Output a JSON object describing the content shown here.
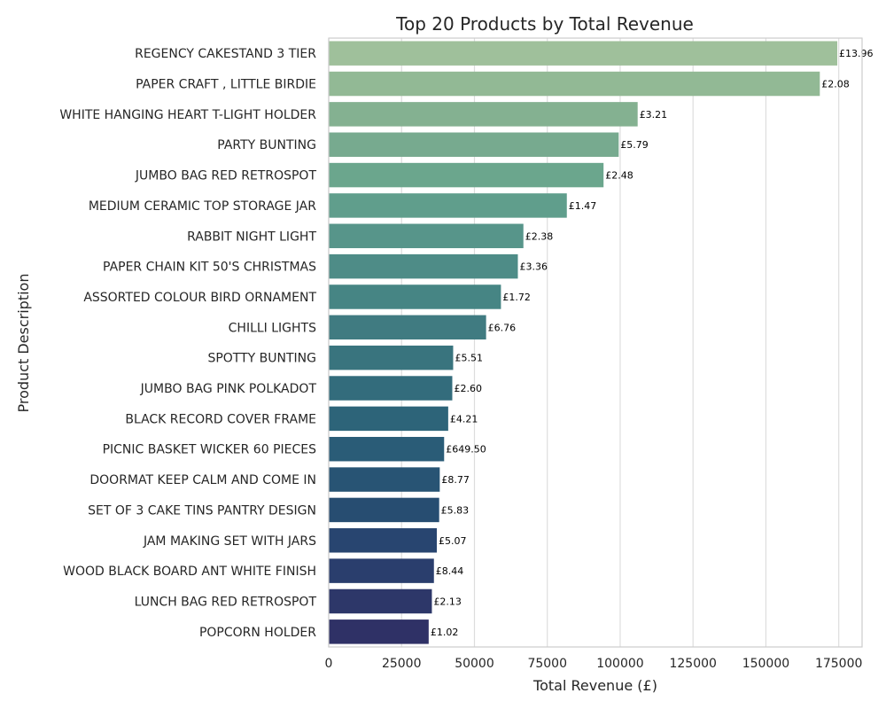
{
  "chart_data": {
    "type": "bar",
    "orientation": "horizontal",
    "title": "Top 20 Products by Total Revenue",
    "xlabel": "Total Revenue (£)",
    "ylabel": "Product Description",
    "xlim": [
      0,
      183000
    ],
    "xticks": [
      0,
      25000,
      50000,
      75000,
      100000,
      125000,
      150000,
      175000
    ],
    "xtick_labels": [
      "0",
      "25000",
      "50000",
      "75000",
      "100000",
      "125000",
      "150000",
      "175000"
    ],
    "grid": "vertical",
    "categories": [
      "REGENCY CAKESTAND 3 TIER",
      "PAPER CRAFT , LITTLE BIRDIE",
      "WHITE HANGING HEART T-LIGHT HOLDER",
      "PARTY BUNTING",
      "JUMBO BAG RED RETROSPOT",
      "MEDIUM CERAMIC TOP STORAGE JAR",
      "RABBIT NIGHT LIGHT",
      "PAPER CHAIN KIT 50'S CHRISTMAS",
      "ASSORTED COLOUR BIRD ORNAMENT",
      "CHILLI LIGHTS",
      "SPOTTY BUNTING",
      "JUMBO BAG PINK POLKADOT",
      "BLACK RECORD COVER FRAME",
      "PICNIC BASKET WICKER 60 PIECES",
      "DOORMAT KEEP CALM AND COME IN",
      "SET OF 3 CAKE TINS PANTRY DESIGN",
      "JAM MAKING SET WITH JARS",
      "WOOD BLACK BOARD ANT WHITE FINISH",
      "LUNCH BAG RED RETROSPOT",
      "POPCORN HOLDER"
    ],
    "values": [
      174500,
      168500,
      106000,
      99500,
      94300,
      81700,
      66800,
      64900,
      59100,
      54000,
      42700,
      42400,
      41000,
      39600,
      38100,
      37900,
      37100,
      36100,
      35400,
      34300
    ],
    "data_labels": [
      "£13.96",
      "£2.08",
      "£3.21",
      "£5.79",
      "£2.48",
      "£1.47",
      "£2.38",
      "£3.36",
      "£1.72",
      "£6.76",
      "£5.51",
      "£2.60",
      "£4.21",
      "£649.50",
      "£8.77",
      "£5.83",
      "£5.07",
      "£8.44",
      "£2.13",
      "£1.02"
    ],
    "colors": [
      "#9fc09b",
      "#92b995",
      "#84b191",
      "#77aa8f",
      "#6ba68d",
      "#609e8c",
      "#57958a",
      "#4e8c87",
      "#468584",
      "#407b81",
      "#39747e",
      "#336c7c",
      "#2d6479",
      "#2a5c77",
      "#285474",
      "#274d71",
      "#284570",
      "#2a3e6d",
      "#2d3769",
      "#2f3166"
    ]
  }
}
